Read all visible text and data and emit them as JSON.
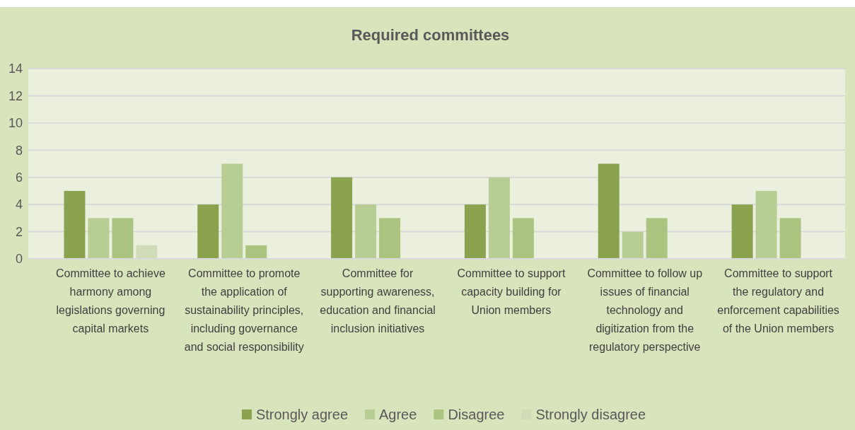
{
  "chart_data": {
    "type": "bar",
    "title": "Required committees",
    "categories": [
      "Committee to achieve harmony among legislations governing capital markets",
      "Committee to promote the application of sustainability principles, including governance and social responsibility",
      "Committee for supporting awareness, education and financial inclusion initiatives",
      "Committee to support capacity building for Union members",
      "Committee to follow up issues of financial technology and digitization from the regulatory perspective",
      "Committee to support the regulatory and enforcement capabilities of the Union members"
    ],
    "series": [
      {
        "name": "Strongly agree",
        "color": "#8ba34e",
        "values": [
          5,
          4,
          6,
          4,
          7,
          4
        ]
      },
      {
        "name": "Agree",
        "color": "#b8cd93",
        "values": [
          3,
          7,
          4,
          6,
          2,
          5
        ]
      },
      {
        "name": "Disagree",
        "color": "#abc480",
        "values": [
          3,
          1,
          3,
          3,
          3,
          3
        ]
      },
      {
        "name": "Strongly disagree",
        "color": "#cfdcb7",
        "values": [
          1,
          0,
          0,
          0,
          0,
          0
        ]
      }
    ],
    "ylim": [
      0,
      14
    ],
    "yticks": [
      0,
      2,
      4,
      6,
      8,
      10,
      12,
      14
    ],
    "grid": "y",
    "legend": "bottom"
  }
}
